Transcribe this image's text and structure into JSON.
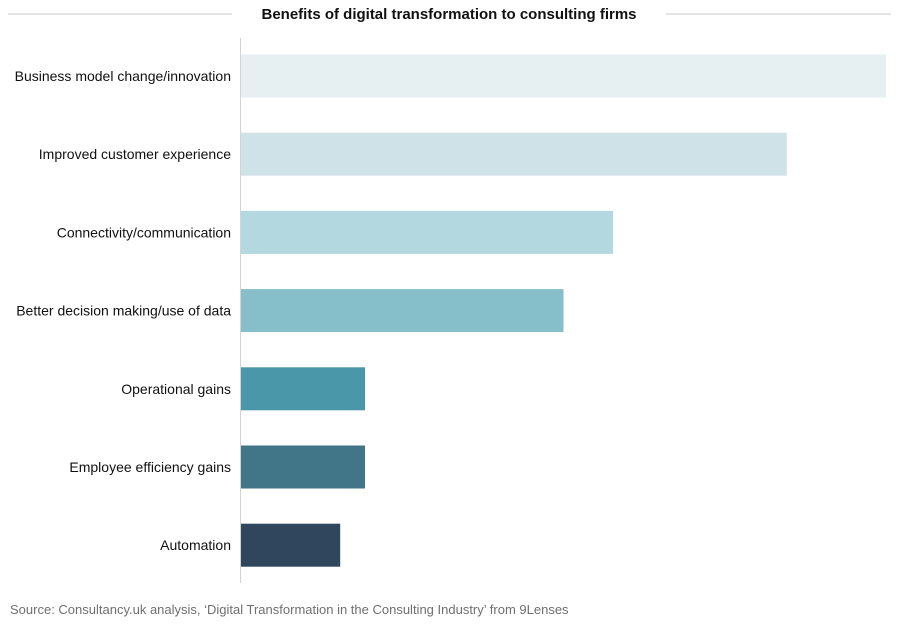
{
  "chart_data": {
    "type": "bar",
    "orientation": "horizontal",
    "title": "Benefits of digital transformation to consulting firms",
    "categories": [
      "Business model change/innovation",
      "Improved customer experience",
      "Connectivity/communication",
      "Better decision making/use of data",
      "Operational gains",
      "Employee efficiency gains",
      "Automation"
    ],
    "values": [
      26,
      22,
      15,
      13,
      5,
      5,
      4
    ],
    "colors": [
      "#e6f0f3",
      "#cfe2e8",
      "#b4d8df",
      "#86bfca",
      "#4a97a9",
      "#417588",
      "#2f465d"
    ],
    "xlim": [
      0,
      26
    ],
    "xlabel": "",
    "ylabel": "",
    "grid": false,
    "legend": "none"
  },
  "source_note": "Source: Consultancy.uk analysis, ‘Digital Transformation in the Consulting Industry’ from 9Lenses"
}
